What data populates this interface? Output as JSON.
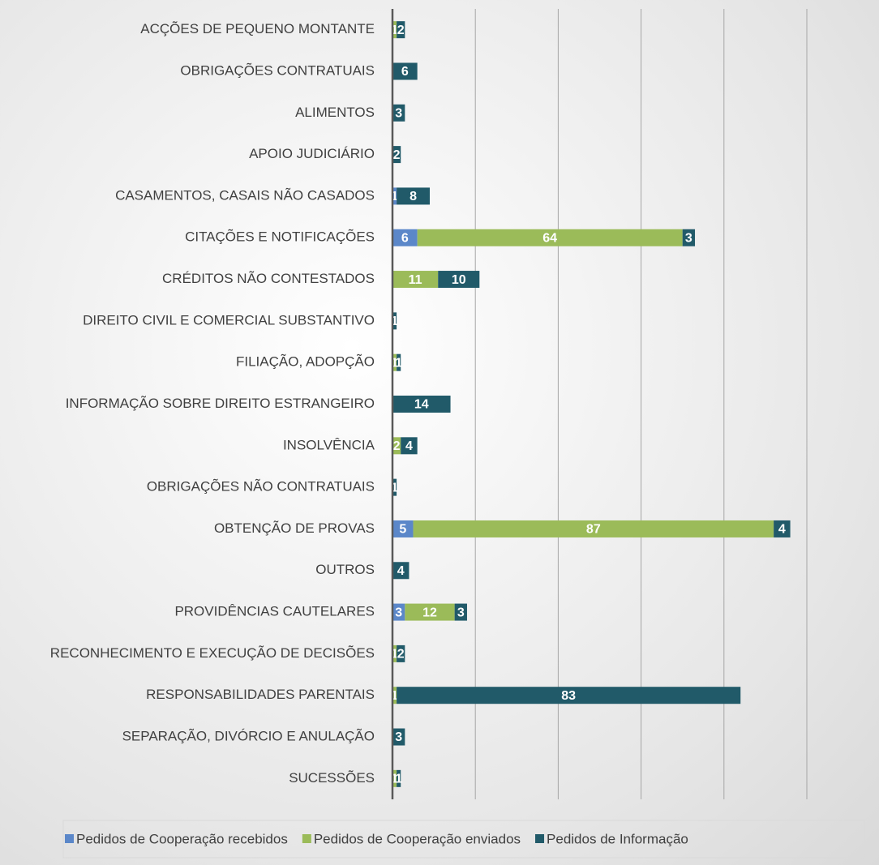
{
  "chart_data": {
    "type": "bar",
    "orientation": "horizontal",
    "stacked": true,
    "categories": [
      "ACÇÕES DE PEQUENO MONTANTE",
      "OBRIGAÇÕES CONTRATUAIS",
      "ALIMENTOS",
      "APOIO JUDICIÁRIO",
      "CASAMENTOS, CASAIS NÃO CASADOS",
      "CITAÇÕES E NOTIFICAÇÕES",
      "CRÉDITOS NÃO CONTESTADOS",
      "DIREITO CIVIL E COMERCIAL SUBSTANTIVO",
      "FILIAÇÃO, ADOPÇÃO",
      "INFORMAÇÃO SOBRE DIREITO ESTRANGEIRO",
      "INSOLVÊNCIA",
      "OBRIGAÇÕES NÃO CONTRATUAIS",
      "OBTENÇÃO DE PROVAS",
      "OUTROS",
      "PROVIDÊNCIAS CAUTELARES",
      "RECONHECIMENTO E EXECUÇÃO DE DECISÕES",
      "RESPONSABILIDADES PARENTAIS",
      "SEPARAÇÃO, DIVÓRCIO E ANULAÇÃO",
      "SUCESSÕES"
    ],
    "series": [
      {
        "name": "Pedidos de Cooperação recebidos",
        "color": "#5b87c9",
        "values": [
          null,
          null,
          null,
          null,
          1,
          6,
          null,
          null,
          null,
          null,
          null,
          null,
          5,
          null,
          3,
          null,
          null,
          null,
          null
        ]
      },
      {
        "name": "Pedidos de Cooperação enviados",
        "color": "#9bbb59",
        "values": [
          1,
          null,
          null,
          null,
          null,
          64,
          11,
          null,
          1,
          null,
          2,
          null,
          87,
          null,
          12,
          1,
          1,
          null,
          1
        ]
      },
      {
        "name": "Pedidos de Informação",
        "color": "#215a69",
        "values": [
          2,
          6,
          3,
          2,
          8,
          3,
          10,
          1,
          1,
          14,
          4,
          1,
          4,
          4,
          3,
          2,
          83,
          3,
          1
        ]
      }
    ],
    "xlim": [
      0,
      100
    ],
    "xticks": [
      0,
      20,
      40,
      60,
      80,
      100
    ],
    "grid": true,
    "legend": "bottom"
  }
}
